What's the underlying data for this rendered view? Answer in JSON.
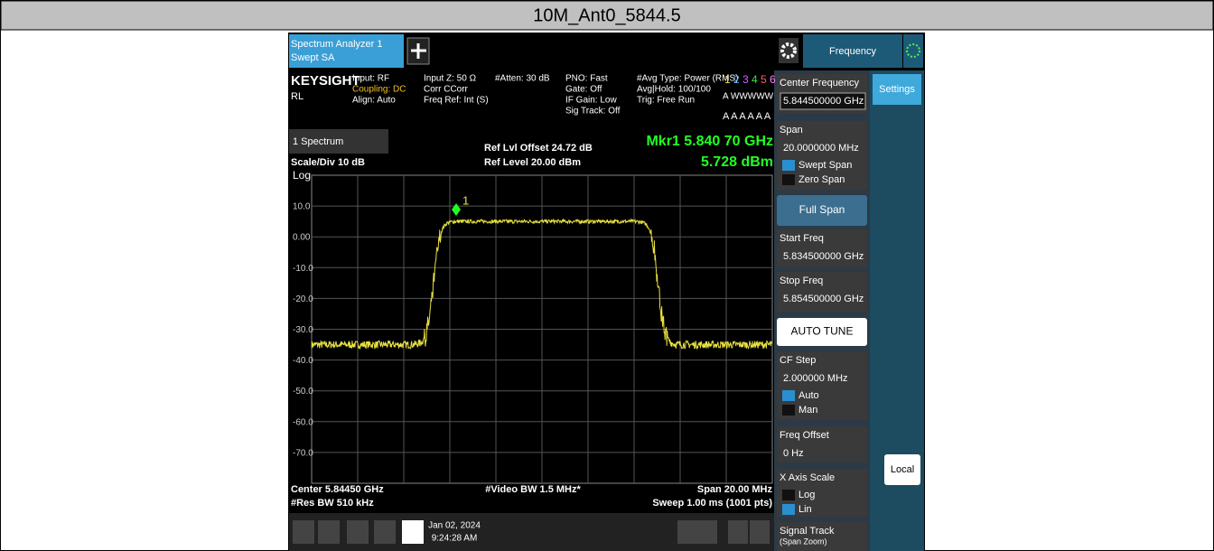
{
  "title": "10M_Ant0_5844.5",
  "toolbar": {
    "app": "Spectrum Analyzer 1",
    "mode": "Swept SA",
    "menu": "Frequency"
  },
  "status": {
    "brand": "KEYSIGHT",
    "rl": "RL",
    "col1": [
      "Input: RF",
      "Coupling: DC",
      "Align: Auto"
    ],
    "col2": [
      "Input Z: 50 Ω",
      "Corr CCorr",
      "Freq Ref: Int (S)"
    ],
    "col3": [
      "#Atten: 30 dB"
    ],
    "col4": [
      "PNO: Fast",
      "Gate: Off",
      "IF Gain: Low",
      "Sig Track: Off"
    ],
    "col5": [
      "#Avg Type: Power (RMS)",
      "Avg|Hold: 100/100",
      "Trig: Free Run"
    ],
    "traces": [
      "1",
      "2",
      "3",
      "4",
      "5",
      "6"
    ],
    "row2": "A WWWWW",
    "row3": "A A A A A A"
  },
  "graph": {
    "window": "1 Spectrum",
    "scale": "Scale/Div 10 dB",
    "log": "Log",
    "ref_offset": "Ref Lvl Offset 24.72 dB",
    "ref_level": "Ref Level 20.00 dBm",
    "marker_freq": "Mkr1  5.840 70 GHz",
    "marker_amp": "5.728 dBm",
    "marker_id": "1",
    "y_labels": [
      "10.0",
      "0.00",
      "-10.0",
      "-20.0",
      "-30.0",
      "-40.0",
      "-50.0",
      "-60.0",
      "-70.0"
    ],
    "center": "Center 5.84450 GHz",
    "rbw": "#Res BW 510 kHz",
    "vbw": "#Video BW 1.5 MHz*",
    "span": "Span 20.00 MHz",
    "sweep": "Sweep 1.00 ms (1001 pts)"
  },
  "taskbar": {
    "date": "Jan 02, 2024",
    "time": "9:24:28 AM"
  },
  "menu": [
    {
      "label": "Center Frequency",
      "value": "5.844500000 GHz"
    },
    {
      "label": "Span",
      "value": "20.0000000 MHz",
      "options": [
        "Swept Span",
        "Zero Span"
      ]
    },
    {
      "button": "Full Span"
    },
    {
      "label": "Start Freq",
      "value": "5.834500000 GHz"
    },
    {
      "label": "Stop Freq",
      "value": "5.854500000 GHz"
    },
    {
      "button": "AUTO TUNE"
    },
    {
      "label": "CF Step",
      "value": "2.000000 MHz",
      "options": [
        "Auto",
        "Man"
      ]
    },
    {
      "label": "Freq Offset",
      "value": "0 Hz"
    },
    {
      "label": "X Axis Scale",
      "options": [
        "Log",
        "Lin"
      ]
    },
    {
      "label": "Signal Track",
      "sub": "(Span Zoom)"
    }
  ],
  "side": {
    "settings": "Settings",
    "local": "Local"
  }
}
